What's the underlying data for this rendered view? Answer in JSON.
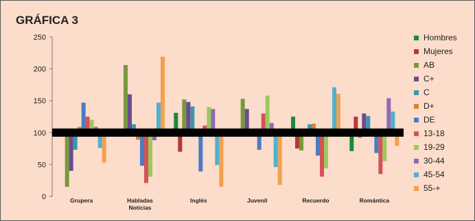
{
  "chart_data": {
    "type": "bar",
    "title": "GRÁFICA 3",
    "xlabel": "",
    "ylabel": "",
    "ylim": [
      0,
      250
    ],
    "yticks": [
      "0",
      "50",
      "100",
      "150",
      "200",
      "250"
    ],
    "baseline": 100,
    "categories": [
      [
        "Grupera"
      ],
      [
        "Habladas",
        "Noticias"
      ],
      [
        "Inglés"
      ],
      [
        "Juvenil"
      ],
      [
        "Recuerdo"
      ],
      [
        "Romántica"
      ]
    ],
    "series": [
      {
        "name": "Hombres",
        "color": "#1c8a3a",
        "values": [
          null,
          null,
          131,
          null,
          125,
          71
        ]
      },
      {
        "name": "Mujeres",
        "color": "#b5383b",
        "values": [
          null,
          null,
          70,
          null,
          75,
          125
        ]
      },
      {
        "name": "AB",
        "color": "#77993c",
        "values": [
          15,
          206,
          152,
          153,
          72,
          92
        ]
      },
      {
        "name": "C+",
        "color": "#6a4d8f",
        "values": [
          40,
          160,
          148,
          137,
          null,
          130
        ]
      },
      {
        "name": "C",
        "color": "#3a98ad",
        "values": [
          73,
          113,
          141,
          null,
          113,
          126
        ]
      },
      {
        "name": "D+",
        "color": "#d9822b",
        "values": [
          109,
          89,
          null,
          null,
          114,
          null
        ]
      },
      {
        "name": "DE",
        "color": "#4a7cc4",
        "values": [
          147,
          48,
          39,
          73,
          64,
          68
        ]
      },
      {
        "name": "13-18",
        "color": "#d45456",
        "values": [
          125,
          21,
          111,
          130,
          31,
          35
        ]
      },
      {
        "name": "19-29",
        "color": "#9cc960",
        "values": [
          120,
          31,
          140,
          158,
          44,
          55
        ]
      },
      {
        "name": "30-44",
        "color": "#8e6cb5",
        "values": [
          109,
          88,
          137,
          115,
          null,
          154
        ]
      },
      {
        "name": "45-54",
        "color": "#4fb2cc",
        "values": [
          76,
          147,
          49,
          46,
          171,
          133
        ]
      },
      {
        "name": "55-+",
        "color": "#f2a050",
        "values": [
          53,
          219,
          15,
          18,
          161,
          79
        ]
      }
    ]
  }
}
